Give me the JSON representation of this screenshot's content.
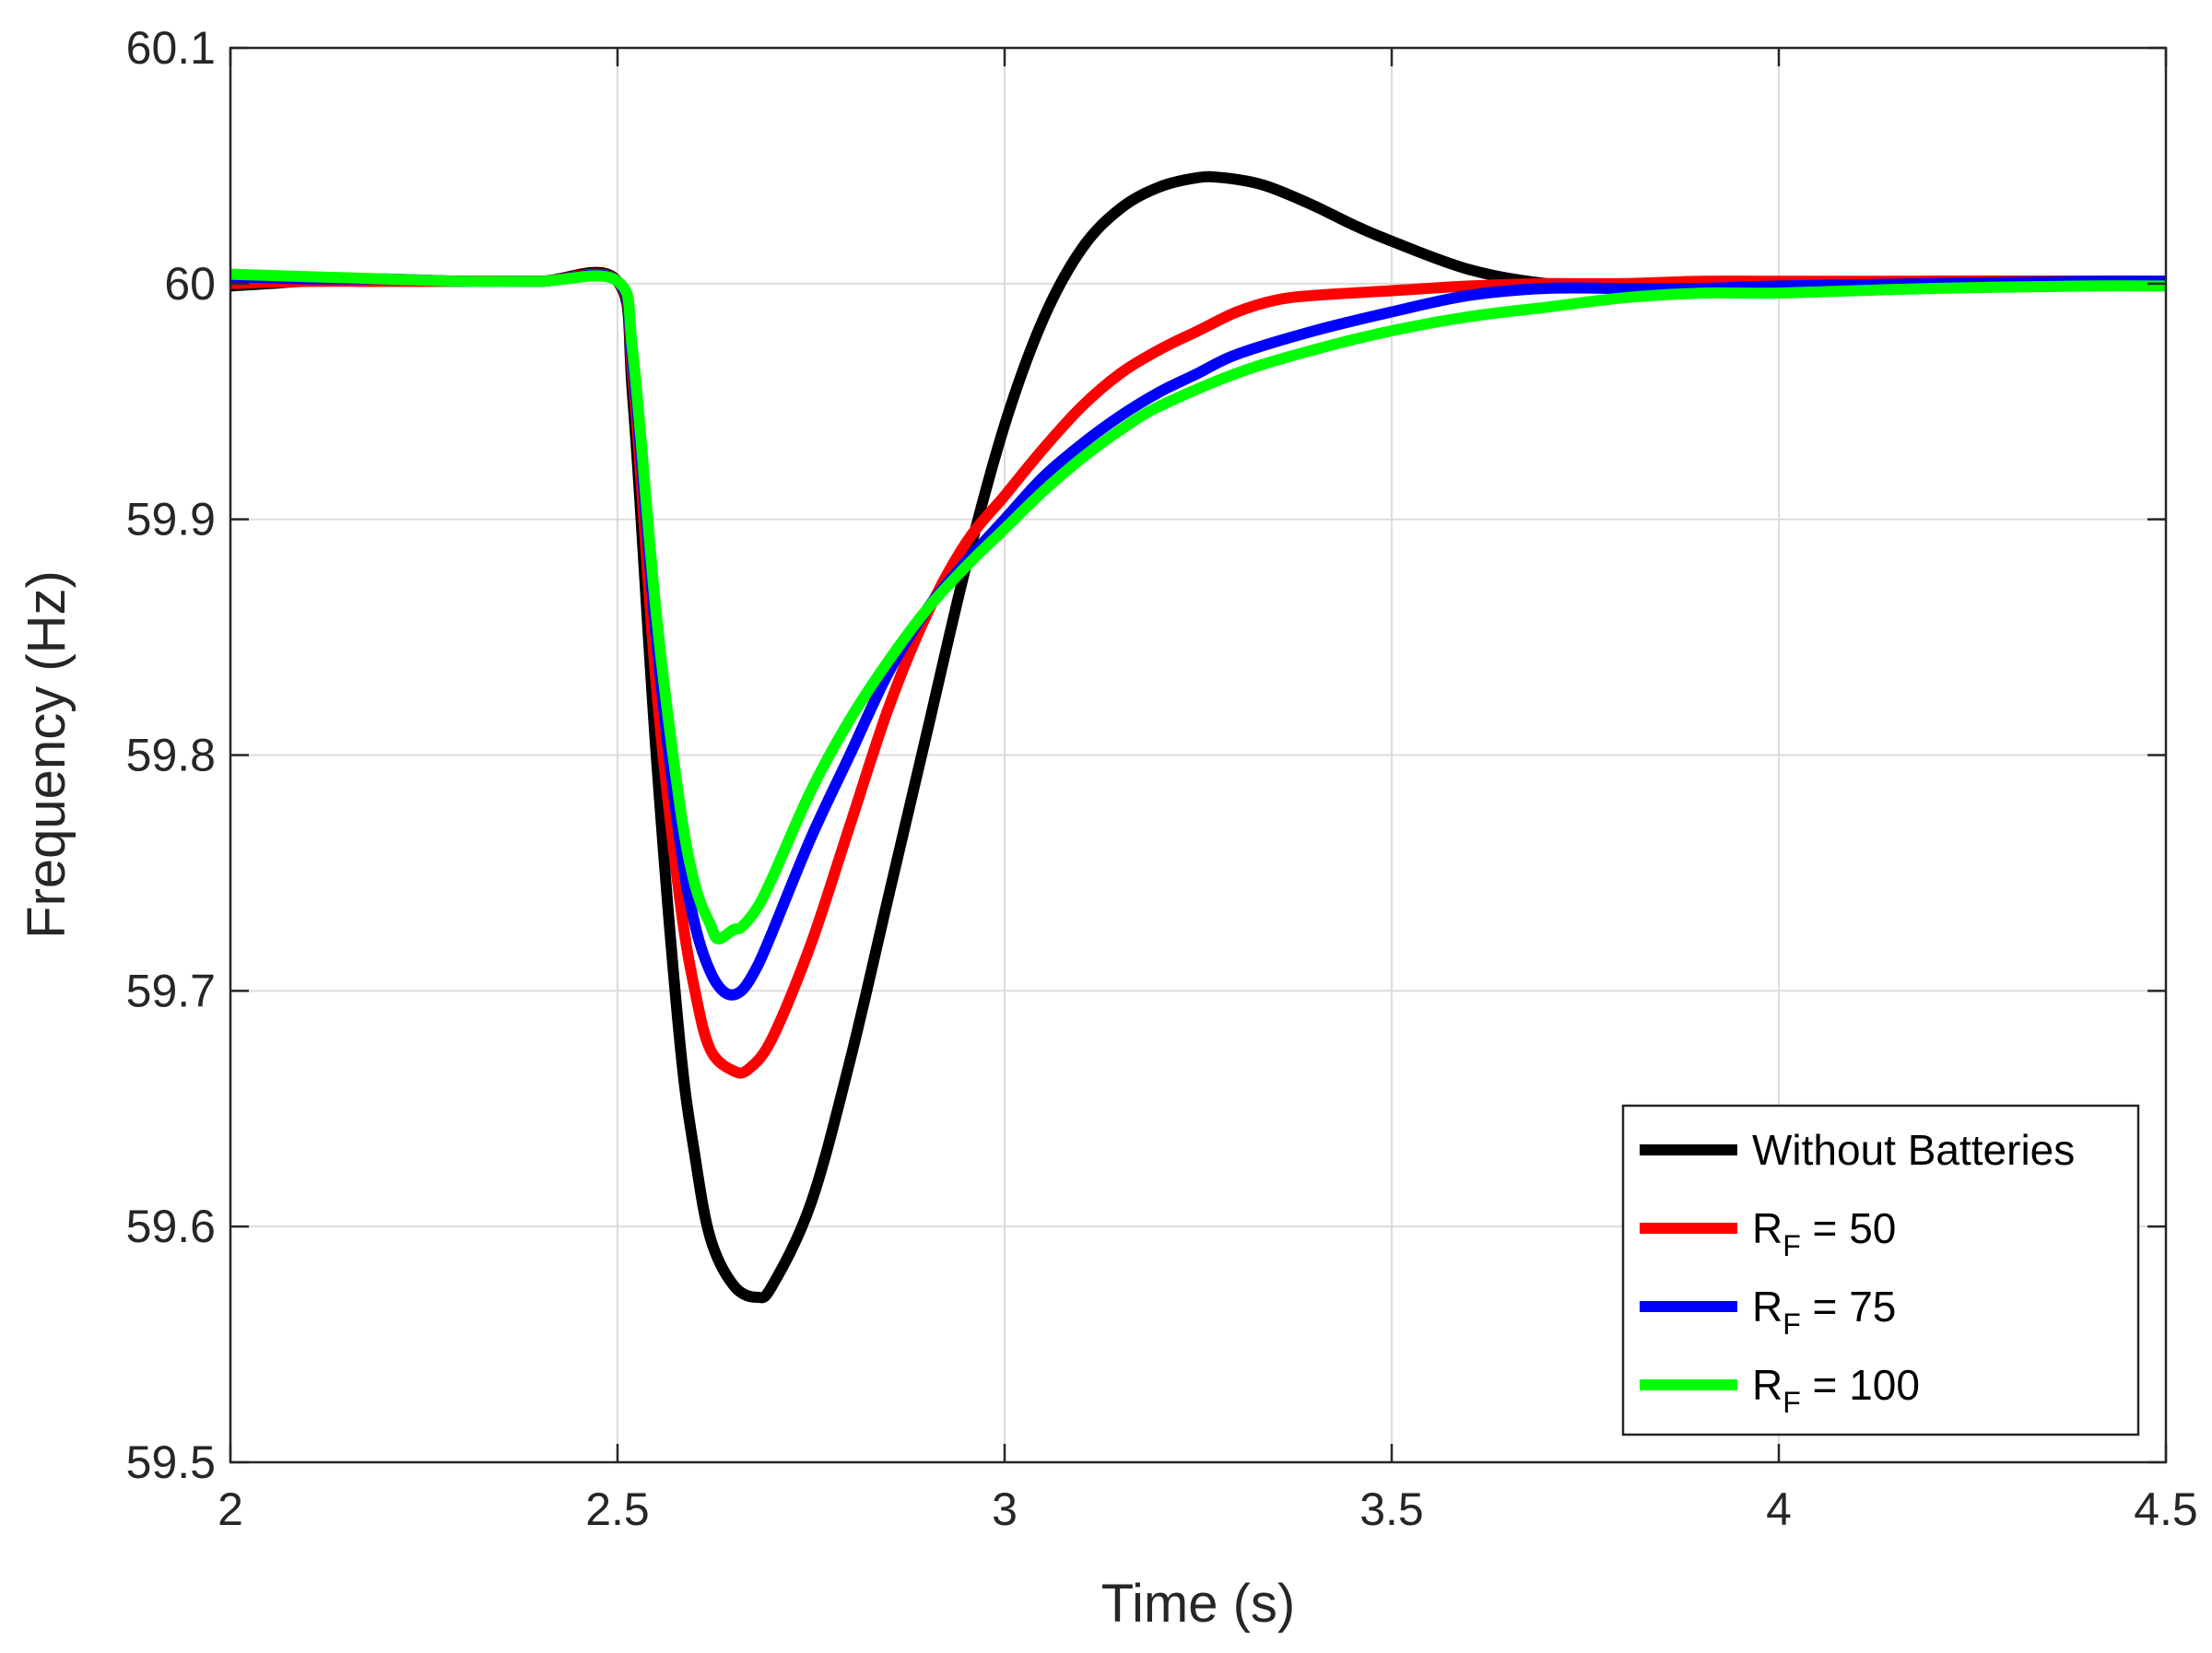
{
  "chart_data": {
    "type": "line",
    "title": "",
    "xlabel": "Time (s)",
    "ylabel": "Frequency (Hz)",
    "xlim": [
      2,
      4.5
    ],
    "ylim": [
      59.5,
      60.1
    ],
    "xticks": [
      2,
      2.5,
      3,
      3.5,
      4,
      4.5
    ],
    "xtick_labels": [
      "2",
      "2.5",
      "3",
      "3.5",
      "4",
      "4.5"
    ],
    "yticks": [
      59.5,
      59.6,
      59.7,
      59.8,
      59.9,
      60,
      60.1
    ],
    "ytick_labels": [
      "59.5",
      "59.6",
      "59.7",
      "59.8",
      "59.9",
      "60",
      "60.1"
    ],
    "grid": true,
    "legend_position": "bottom-right",
    "series": [
      {
        "name": "Without Batteries",
        "legend_main": "Without Batteries",
        "legend_sub": "",
        "legend_rest": "",
        "color": "#000000",
        "x": [
          2.0,
          2.05,
          2.1,
          2.2,
          2.3,
          2.4,
          2.5,
          2.52,
          2.55,
          2.58,
          2.6,
          2.62,
          2.65,
          2.68,
          2.7,
          2.75,
          2.8,
          2.85,
          2.9,
          2.95,
          3.0,
          3.05,
          3.1,
          3.15,
          3.2,
          3.25,
          3.28,
          3.32,
          3.35,
          3.4,
          3.45,
          3.5,
          3.6,
          3.7,
          3.8,
          3.9,
          4.0,
          4.2,
          4.4,
          4.5
        ],
        "y": [
          59.999,
          60.0,
          60.001,
          60.001,
          60.001,
          60.001,
          60.001,
          59.95,
          59.8,
          59.68,
          59.63,
          59.595,
          59.575,
          59.57,
          59.575,
          59.61,
          59.67,
          59.74,
          59.81,
          59.88,
          59.94,
          59.985,
          60.015,
          60.032,
          60.041,
          60.045,
          60.045,
          60.043,
          60.04,
          60.033,
          60.025,
          60.018,
          60.006,
          60.0,
          59.999,
          60.0,
          60.0,
          60.001,
          60.001,
          60.001
        ]
      },
      {
        "name": "R_F = 50",
        "legend_main": "R",
        "legend_sub": "F",
        "legend_rest": " = 50",
        "color": "#ff0000",
        "x": [
          2.0,
          2.1,
          2.2,
          2.3,
          2.4,
          2.5,
          2.52,
          2.55,
          2.58,
          2.6,
          2.62,
          2.65,
          2.67,
          2.7,
          2.75,
          2.8,
          2.85,
          2.9,
          2.95,
          3.0,
          3.05,
          3.1,
          3.15,
          3.2,
          3.25,
          3.3,
          3.35,
          3.4,
          3.5,
          3.6,
          3.7,
          3.8,
          3.9,
          4.0,
          4.2,
          4.4,
          4.5
        ],
        "y": [
          60.0,
          60.001,
          60.001,
          60.001,
          60.001,
          60.001,
          59.96,
          59.83,
          59.74,
          59.7,
          59.675,
          59.666,
          59.667,
          59.68,
          59.72,
          59.77,
          59.82,
          59.86,
          59.89,
          59.91,
          59.93,
          59.948,
          59.962,
          59.972,
          59.98,
          59.988,
          59.993,
          59.995,
          59.997,
          59.999,
          60.0,
          60.0,
          60.001,
          60.001,
          60.001,
          60.001,
          60.001
        ]
      },
      {
        "name": "R_F = 75",
        "legend_main": "R",
        "legend_sub": "F",
        "legend_rest": " = 75",
        "color": "#0000ff",
        "x": [
          2.0,
          2.1,
          2.2,
          2.3,
          2.4,
          2.5,
          2.52,
          2.55,
          2.58,
          2.6,
          2.62,
          2.64,
          2.66,
          2.68,
          2.7,
          2.75,
          2.8,
          2.85,
          2.9,
          2.95,
          3.0,
          3.05,
          3.1,
          3.15,
          3.2,
          3.25,
          3.3,
          3.4,
          3.5,
          3.6,
          3.7,
          3.8,
          3.9,
          4.0,
          4.2,
          4.4,
          4.5
        ],
        "y": [
          60.003,
          60.002,
          60.002,
          60.001,
          60.001,
          60.001,
          59.965,
          59.85,
          59.765,
          59.728,
          59.708,
          59.699,
          59.7,
          59.71,
          59.725,
          59.765,
          59.8,
          59.835,
          59.862,
          59.882,
          59.9,
          59.918,
          59.932,
          59.944,
          59.954,
          59.962,
          59.97,
          59.98,
          59.988,
          59.995,
          59.998,
          59.998,
          59.998,
          59.999,
          60.0,
          60.001,
          60.001
        ]
      },
      {
        "name": "R_F = 100",
        "legend_main": "R",
        "legend_sub": "F",
        "legend_rest": " = 100",
        "color": "#00ff00",
        "x": [
          2.0,
          2.1,
          2.2,
          2.3,
          2.4,
          2.5,
          2.52,
          2.55,
          2.58,
          2.6,
          2.62,
          2.63,
          2.65,
          2.66,
          2.68,
          2.7,
          2.75,
          2.8,
          2.85,
          2.9,
          2.95,
          3.0,
          3.05,
          3.1,
          3.15,
          3.2,
          3.3,
          3.4,
          3.5,
          3.6,
          3.7,
          3.8,
          3.9,
          4.0,
          4.2,
          4.4,
          4.5
        ],
        "y": [
          60.004,
          60.003,
          60.002,
          60.001,
          60.001,
          60.001,
          59.97,
          59.86,
          59.78,
          59.745,
          59.728,
          59.722,
          59.726,
          59.727,
          59.735,
          59.748,
          59.785,
          59.815,
          59.84,
          59.862,
          59.88,
          59.896,
          59.912,
          59.926,
          59.938,
          59.948,
          59.962,
          59.972,
          59.98,
          59.986,
          59.99,
          59.994,
          59.996,
          59.996,
          59.998,
          59.999,
          59.999
        ]
      }
    ]
  }
}
